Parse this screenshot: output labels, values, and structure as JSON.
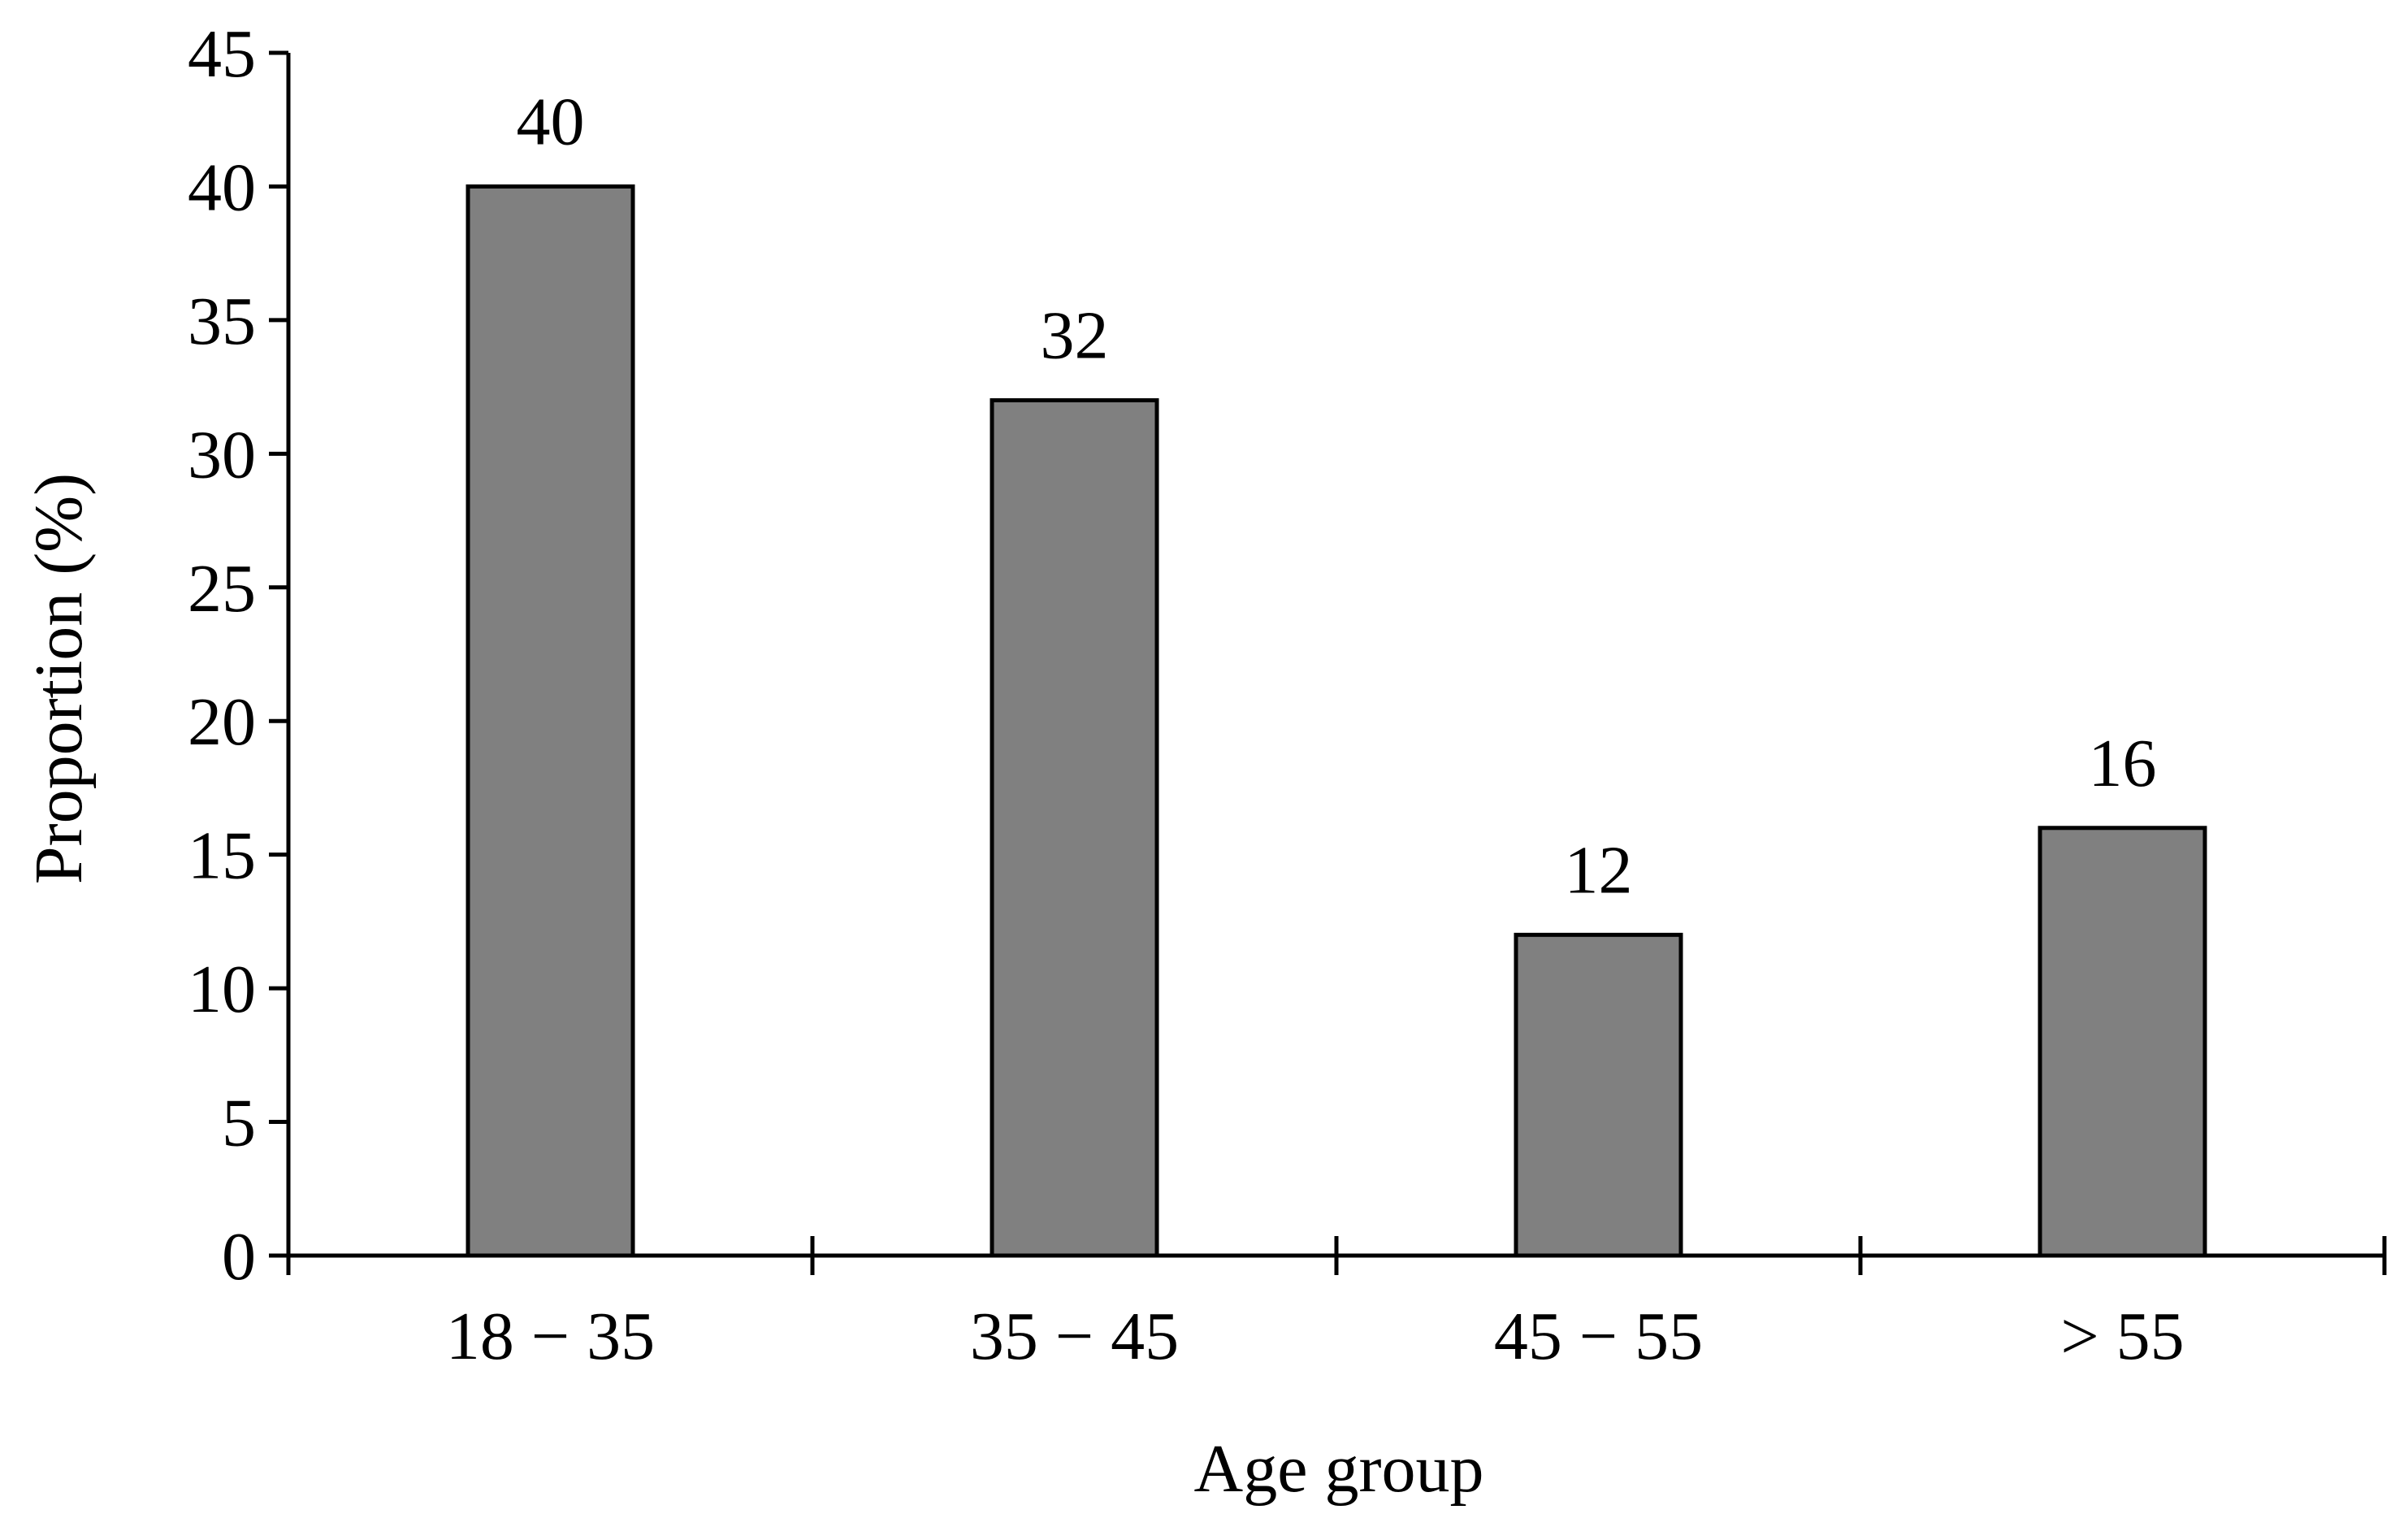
{
  "chart_data": {
    "type": "bar",
    "title": "",
    "xlabel": "Age group",
    "ylabel": "Proportion (%)",
    "categories": [
      "18 − 35",
      "35 − 45",
      "45 − 55",
      "> 55"
    ],
    "values": [
      40,
      32,
      12,
      16
    ],
    "data_labels": [
      "40",
      "32",
      "12",
      "16"
    ],
    "ylim": [
      0,
      45
    ],
    "yticks": [
      "0",
      "5",
      "10",
      "15",
      "20",
      "25",
      "30",
      "35",
      "40",
      "45"
    ],
    "grid": false,
    "legend": "none",
    "bar_color": "#808080",
    "bar_edge_color": "#000000"
  }
}
